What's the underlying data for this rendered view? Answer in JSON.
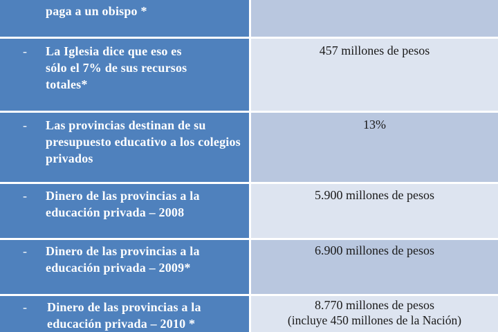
{
  "rows": [
    {
      "left": "paga a un obispo *",
      "right": "",
      "dash": false
    },
    {
      "left": "La Iglesia dice que eso es sólo el 7% de sus recursos totales*",
      "right": "457 millones de pesos",
      "dash": true
    },
    {
      "left": "Las provincias destinan de su presupuesto educativo a los colegios privados",
      "right": "13%",
      "dash": true
    },
    {
      "left": "Dinero de las provincias a la educación privada – 2008",
      "right": "5.900 millones de pesos",
      "dash": true
    },
    {
      "left": "Dinero de las provincias a la educación privada – 2009*",
      "right": "6.900 millones de pesos",
      "dash": true
    },
    {
      "left": "Dinero de las provincias a la educación privada – 2010 *",
      "right": "8.770 millones de pesos",
      "right2": "(incluye 450 millones de la Nación)",
      "dash": true
    }
  ],
  "dash_symbol": "-",
  "colors": {
    "header_blue": "#4f81bd",
    "light_cell": "#dde4f0",
    "mid_cell": "#b9c7df"
  }
}
